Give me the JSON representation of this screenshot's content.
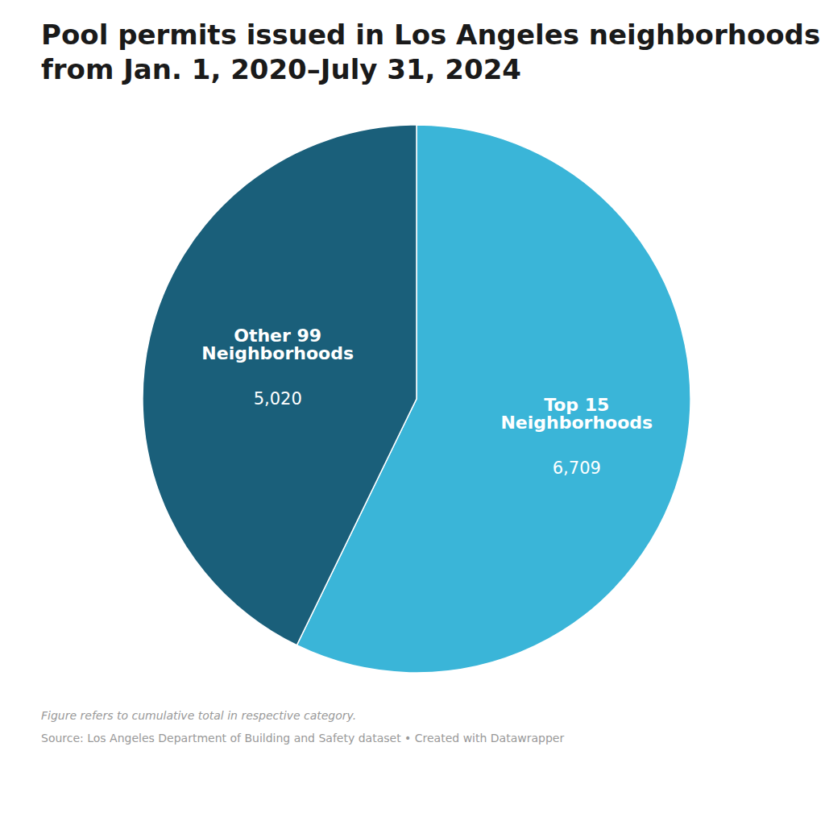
{
  "chart_data": {
    "type": "pie",
    "title": "Pool permits issued in Los Angeles neighborhoods\nfrom Jan. 1, 2020–July 31, 2024",
    "categories": [
      "Top 15\nNeighborhoods",
      "Other 99\nNeighborhoods"
    ],
    "values": [
      6709,
      5020
    ],
    "value_labels": [
      "6,709",
      "5,020"
    ],
    "colors": [
      "#3ab5d8",
      "#1a5f7a"
    ],
    "data_labels": true,
    "annotations": [
      "Figure refers to cumulative total in respective category.",
      "Source: Los Angeles Department of Building and Safety dataset • Created with Datawrapper"
    ]
  }
}
